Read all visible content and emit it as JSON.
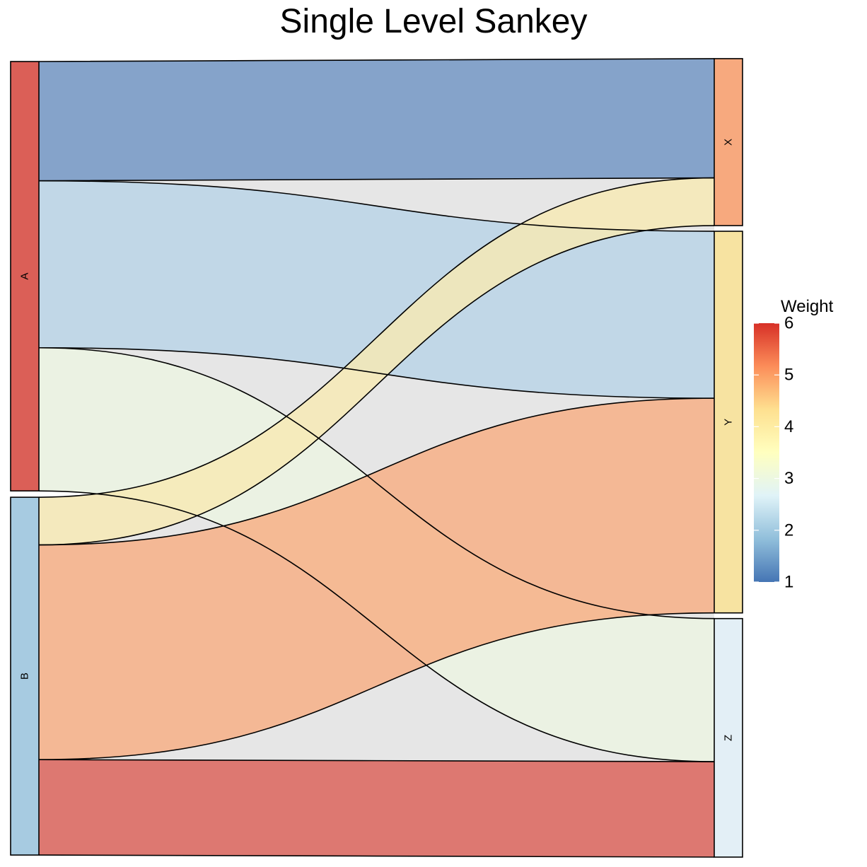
{
  "chart_data": {
    "type": "sankey",
    "title": "Single Level Sankey",
    "source_nodes": [
      {
        "name": "A",
        "color": "#DB5F57"
      },
      {
        "name": "B",
        "color": "#A7CBE1"
      }
    ],
    "target_nodes": [
      {
        "name": "X",
        "color": "#F7A97E"
      },
      {
        "name": "Y",
        "color": "#F7E3A1"
      },
      {
        "name": "Z",
        "color": "#E3EFF6"
      }
    ],
    "links": [
      {
        "source": "A",
        "target": "X",
        "value": 5,
        "weight": 1
      },
      {
        "source": "A",
        "target": "Y",
        "value": 7,
        "weight": 2
      },
      {
        "source": "A",
        "target": "Z",
        "value": 6,
        "weight": 3
      },
      {
        "source": "B",
        "target": "X",
        "value": 2,
        "weight": 4
      },
      {
        "source": "B",
        "target": "Y",
        "value": 9,
        "weight": 5
      },
      {
        "source": "B",
        "target": "Z",
        "value": 4,
        "weight": 6
      }
    ],
    "link_colors": {
      "A-X": "#6F94C3",
      "A-Y": "#B8D3E6",
      "A-Z": "#ECF4E2",
      "B-X": "#F7E9B3",
      "B-Y": "#F7AD83",
      "B-Z": "#DB5F57"
    },
    "legend": {
      "title": "Weight",
      "min": 1,
      "max": 6,
      "ticks": [
        1,
        2,
        3,
        4,
        5,
        6
      ],
      "colors": [
        "#4575B4",
        "#91BFDB",
        "#E0F3F8",
        "#FFFFBF",
        "#FEE090",
        "#FC8D59",
        "#D73027"
      ],
      "placement": "right"
    }
  }
}
